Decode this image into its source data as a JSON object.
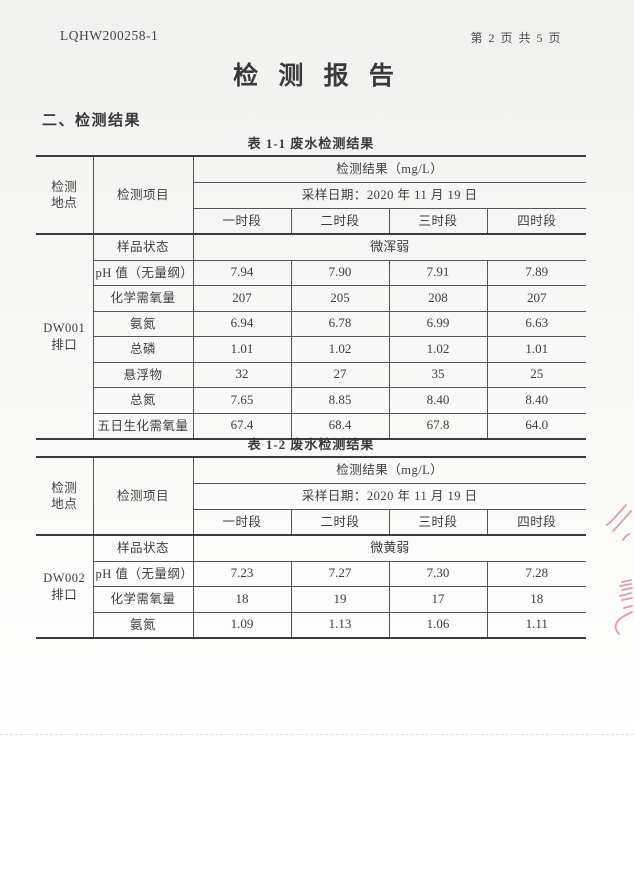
{
  "page": {
    "doc_number": "LQHW200258-1",
    "page_indicator": "第 2 页 共 5 页",
    "title": "检 测 报 告",
    "section_heading": "二、检测结果",
    "stamp_color": "#c94f5f"
  },
  "tables": [
    {
      "title": "表 1-1 废水检测结果",
      "header": {
        "location_label": "检测\n地点",
        "item_label": "检测项目",
        "result_label": "检测结果（mg/L）",
        "date_label": "采样日期：2020 年 11 月 19 日",
        "periods": [
          "一时段",
          "二时段",
          "三时段",
          "四时段"
        ]
      },
      "location": "DW001 排口",
      "sample_status_label": "样品状态",
      "sample_status_value": "微浑弱",
      "rows": [
        {
          "item": "pH 值（无量纲）",
          "values": [
            "7.94",
            "7.90",
            "7.91",
            "7.89"
          ]
        },
        {
          "item": "化学需氧量",
          "values": [
            "207",
            "205",
            "208",
            "207"
          ]
        },
        {
          "item": "氨氮",
          "values": [
            "6.94",
            "6.78",
            "6.99",
            "6.63"
          ]
        },
        {
          "item": "总磷",
          "values": [
            "1.01",
            "1.02",
            "1.02",
            "1.01"
          ]
        },
        {
          "item": "悬浮物",
          "values": [
            "32",
            "27",
            "35",
            "25"
          ]
        },
        {
          "item": "总氮",
          "values": [
            "7.65",
            "8.85",
            "8.40",
            "8.40"
          ]
        },
        {
          "item": "五日生化需氧量",
          "values": [
            "67.4",
            "68.4",
            "67.8",
            "64.0"
          ]
        }
      ]
    },
    {
      "title": "表 1-2 废水检测结果",
      "header": {
        "location_label": "检测\n地点",
        "item_label": "检测项目",
        "result_label": "检测结果（mg/L）",
        "date_label": "采样日期：2020 年 11 月 19 日",
        "periods": [
          "一时段",
          "二时段",
          "三时段",
          "四时段"
        ]
      },
      "location": "DW002 排口",
      "sample_status_label": "样品状态",
      "sample_status_value": "微黄弱",
      "rows": [
        {
          "item": "pH 值（无量纲）",
          "values": [
            "7.23",
            "7.27",
            "7.30",
            "7.28"
          ]
        },
        {
          "item": "化学需氧量",
          "values": [
            "18",
            "19",
            "17",
            "18"
          ]
        },
        {
          "item": "氨氮",
          "values": [
            "1.09",
            "1.13",
            "1.06",
            "1.11"
          ]
        }
      ]
    }
  ]
}
